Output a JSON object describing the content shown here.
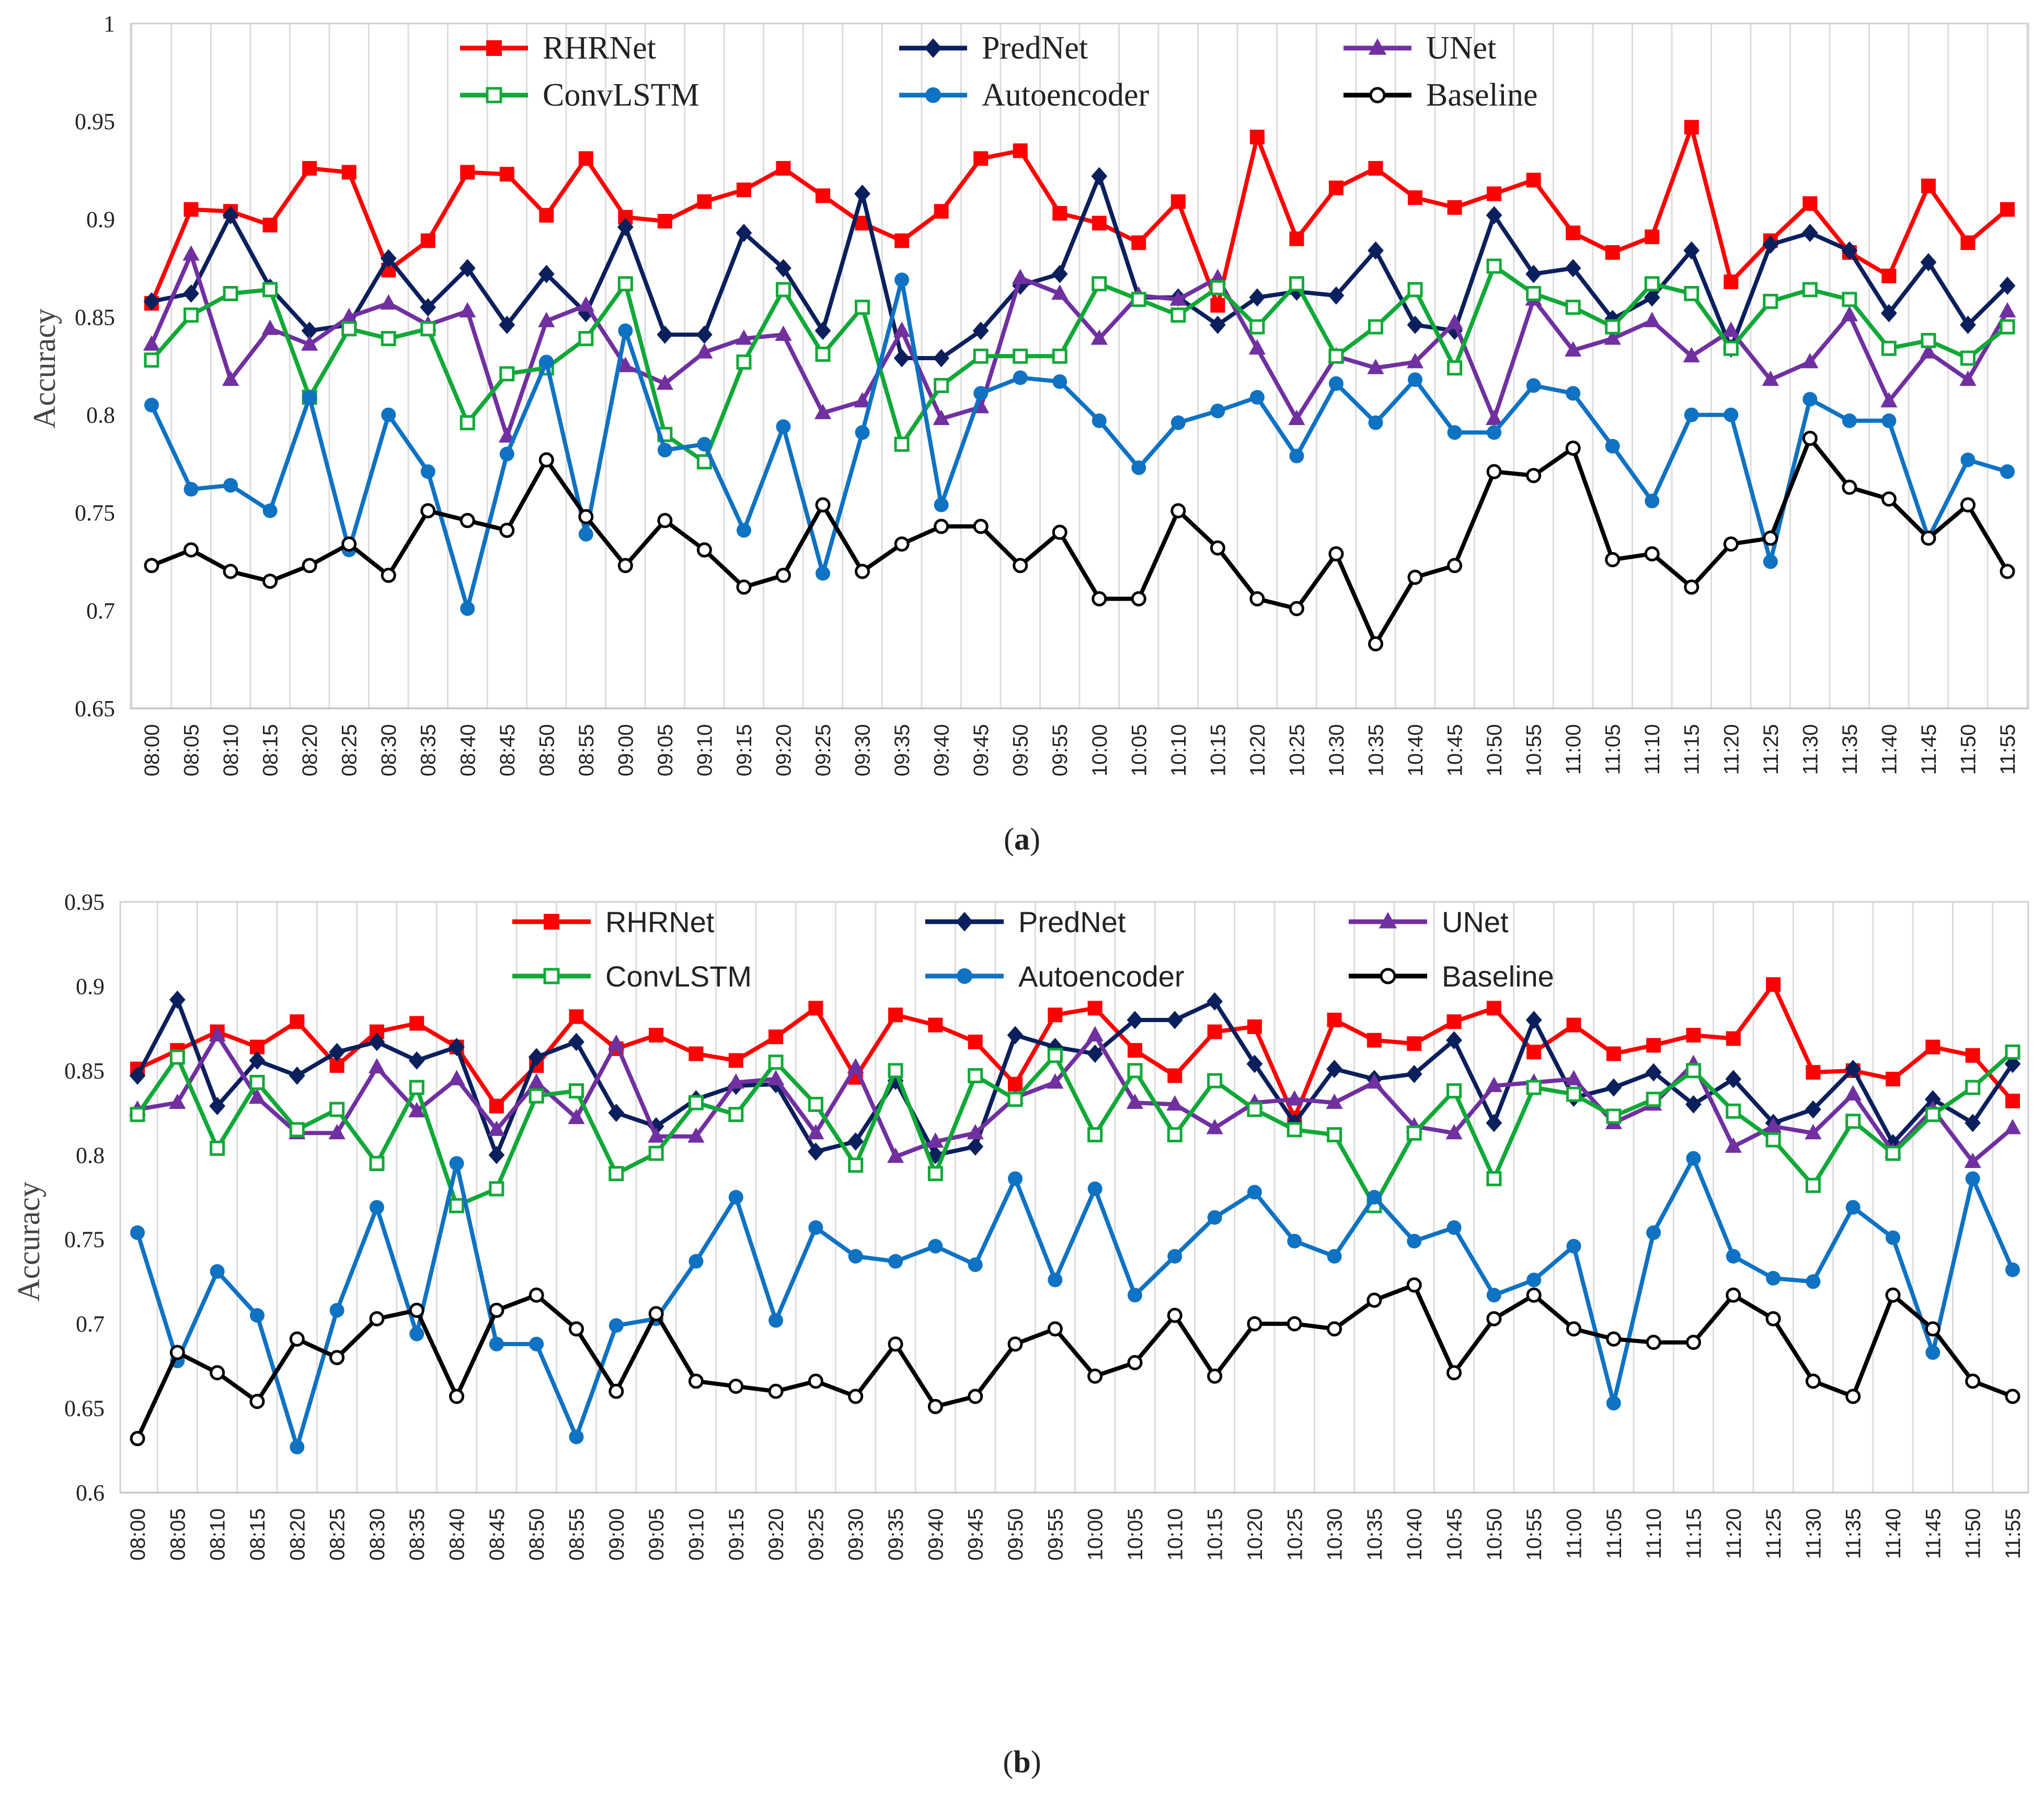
{
  "times": [
    "08:00",
    "08:05",
    "08:10",
    "08:15",
    "08:20",
    "08:25",
    "08:30",
    "08:35",
    "08:40",
    "08:45",
    "08:50",
    "08:55",
    "09:00",
    "09:05",
    "09:10",
    "09:15",
    "09:20",
    "09:25",
    "09:30",
    "09:35",
    "09:40",
    "09:45",
    "09:50",
    "09:55",
    "10:00",
    "10:05",
    "10:10",
    "10:15",
    "10:20",
    "10:25",
    "10:30",
    "10:35",
    "10:40",
    "10:45",
    "10:50",
    "10:55",
    "11:00",
    "11:05",
    "11:10",
    "11:15",
    "11:20",
    "11:25",
    "11:30",
    "11:35",
    "11:40",
    "11:45",
    "11:50",
    "11:55"
  ],
  "chart_data": [
    {
      "id": "a",
      "type": "line",
      "caption_letter": "a",
      "ylabel": "Accuracy",
      "xlabel": "",
      "ylim": [
        0.65,
        1
      ],
      "yticks": [
        0.65,
        0.7,
        0.75,
        0.8,
        0.85,
        0.9,
        0.95,
        1
      ],
      "ytick_labels": [
        "0.65",
        "0.7",
        "0.75",
        "0.8",
        "0.85",
        "0.9",
        "0.95",
        "1"
      ],
      "grid": "vertical",
      "legend": "top",
      "series": [
        {
          "name": "RHRNet",
          "color": "#ff0000",
          "marker": "square-filled",
          "values": [
            0.857,
            0.905,
            0.904,
            0.897,
            0.926,
            0.924,
            0.874,
            0.889,
            0.924,
            0.923,
            0.902,
            0.931,
            0.901,
            0.899,
            0.909,
            0.915,
            0.926,
            0.912,
            0.898,
            0.889,
            0.904,
            0.931,
            0.935,
            0.903,
            0.898,
            0.888,
            0.909,
            0.856,
            0.942,
            0.89,
            0.916,
            0.926,
            0.911,
            0.906,
            0.913,
            0.92,
            0.893,
            0.883,
            0.891,
            0.947,
            0.868,
            0.889,
            0.908,
            0.883,
            0.871,
            0.917,
            0.888,
            0.905
          ]
        },
        {
          "name": "PredNet",
          "color": "#0a1f5c",
          "marker": "diamond-filled",
          "values": [
            0.858,
            0.862,
            0.902,
            0.865,
            0.843,
            0.846,
            0.88,
            0.855,
            0.875,
            0.846,
            0.872,
            0.852,
            0.896,
            0.841,
            0.841,
            0.893,
            0.875,
            0.843,
            0.913,
            0.829,
            0.829,
            0.843,
            0.866,
            0.872,
            0.922,
            0.86,
            0.86,
            0.846,
            0.86,
            0.863,
            0.861,
            0.884,
            0.846,
            0.843,
            0.902,
            0.872,
            0.875,
            0.849,
            0.86,
            0.884,
            0.834,
            0.887,
            0.893,
            0.884,
            0.852,
            0.878,
            0.846,
            0.866
          ]
        },
        {
          "name": "UNet",
          "color": "#7030a0",
          "marker": "triangle-filled",
          "values": [
            0.836,
            0.882,
            0.818,
            0.844,
            0.836,
            0.85,
            0.857,
            0.846,
            0.853,
            0.789,
            0.848,
            0.856,
            0.825,
            0.816,
            0.832,
            0.839,
            0.841,
            0.801,
            0.807,
            0.843,
            0.798,
            0.804,
            0.87,
            0.862,
            0.839,
            0.861,
            0.859,
            0.87,
            0.834,
            0.798,
            0.83,
            0.824,
            0.827,
            0.847,
            0.798,
            0.859,
            0.833,
            0.839,
            0.848,
            0.83,
            0.843,
            0.818,
            0.827,
            0.851,
            0.807,
            0.832,
            0.818,
            0.853
          ]
        },
        {
          "name": "ConvLSTM",
          "color": "#11a838",
          "marker": "square-open",
          "values": [
            0.828,
            0.851,
            0.862,
            0.864,
            0.809,
            0.844,
            0.839,
            0.844,
            0.796,
            0.821,
            0.824,
            0.839,
            0.867,
            0.79,
            0.776,
            0.827,
            0.864,
            0.831,
            0.855,
            0.785,
            0.815,
            0.83,
            0.83,
            0.83,
            0.867,
            0.859,
            0.851,
            0.865,
            0.845,
            0.867,
            0.83,
            0.845,
            0.864,
            0.824,
            0.876,
            0.862,
            0.855,
            0.845,
            0.867,
            0.862,
            0.834,
            0.858,
            0.864,
            0.859,
            0.834,
            0.838,
            0.829,
            0.845
          ]
        },
        {
          "name": "Autoencoder",
          "color": "#0f72c2",
          "marker": "circle-filled",
          "values": [
            0.805,
            0.762,
            0.764,
            0.751,
            0.809,
            0.731,
            0.8,
            0.771,
            0.701,
            0.78,
            0.827,
            0.739,
            0.843,
            0.782,
            0.785,
            0.741,
            0.794,
            0.719,
            0.791,
            0.869,
            0.754,
            0.811,
            0.819,
            0.817,
            0.797,
            0.773,
            0.796,
            0.802,
            0.809,
            0.779,
            0.816,
            0.796,
            0.818,
            0.791,
            0.791,
            0.815,
            0.811,
            0.784,
            0.756,
            0.8,
            0.8,
            0.725,
            0.808,
            0.797,
            0.797,
            0.737,
            0.777,
            0.771
          ]
        },
        {
          "name": "Baseline",
          "color": "#000000",
          "marker": "circle-open",
          "values": [
            0.723,
            0.731,
            0.72,
            0.715,
            0.723,
            0.734,
            0.718,
            0.751,
            0.746,
            0.741,
            0.777,
            0.748,
            0.723,
            0.746,
            0.731,
            0.712,
            0.718,
            0.754,
            0.72,
            0.734,
            0.743,
            0.743,
            0.723,
            0.74,
            0.706,
            0.706,
            0.751,
            0.732,
            0.706,
            0.701,
            0.729,
            0.683,
            0.717,
            0.723,
            0.771,
            0.769,
            0.783,
            0.726,
            0.729,
            0.712,
            0.734,
            0.737,
            0.788,
            0.763,
            0.757,
            0.737,
            0.754,
            0.72
          ]
        }
      ]
    },
    {
      "id": "b",
      "type": "line",
      "caption_letter": "b",
      "ylabel": "Accuracy",
      "xlabel": "",
      "ylim": [
        0.6,
        0.95
      ],
      "yticks": [
        0.6,
        0.65,
        0.7,
        0.75,
        0.8,
        0.85,
        0.9,
        0.95
      ],
      "ytick_labels": [
        "0.6",
        "0.65",
        "0.7",
        "0.75",
        "0.8",
        "0.85",
        "0.9",
        "0.95"
      ],
      "grid": "vertical",
      "legend": "top",
      "series": [
        {
          "name": "RHRNet",
          "color": "#ff0000",
          "marker": "square-filled",
          "values": [
            0.851,
            0.862,
            0.873,
            0.864,
            0.879,
            0.853,
            0.873,
            0.878,
            0.864,
            0.829,
            0.853,
            0.882,
            0.863,
            0.871,
            0.86,
            0.856,
            0.87,
            0.887,
            0.846,
            0.883,
            0.877,
            0.867,
            0.842,
            0.883,
            0.887,
            0.862,
            0.847,
            0.873,
            0.876,
            0.822,
            0.88,
            0.868,
            0.866,
            0.879,
            0.887,
            0.861,
            0.877,
            0.86,
            0.865,
            0.871,
            0.869,
            0.901,
            0.849,
            0.85,
            0.845,
            0.864,
            0.859,
            0.832
          ]
        },
        {
          "name": "PredNet",
          "color": "#0a1f5c",
          "marker": "diamond-filled",
          "values": [
            0.847,
            0.892,
            0.829,
            0.856,
            0.847,
            0.861,
            0.867,
            0.856,
            0.864,
            0.8,
            0.858,
            0.867,
            0.825,
            0.817,
            0.833,
            0.841,
            0.842,
            0.802,
            0.808,
            0.844,
            0.8,
            0.805,
            0.871,
            0.864,
            0.86,
            0.88,
            0.88,
            0.891,
            0.854,
            0.819,
            0.851,
            0.845,
            0.848,
            0.868,
            0.819,
            0.88,
            0.834,
            0.84,
            0.849,
            0.83,
            0.845,
            0.819,
            0.827,
            0.851,
            0.807,
            0.833,
            0.819,
            0.854
          ]
        },
        {
          "name": "UNet",
          "color": "#7030a0",
          "marker": "triangle-filled",
          "values": [
            0.827,
            0.831,
            0.871,
            0.834,
            0.813,
            0.813,
            0.852,
            0.826,
            0.845,
            0.815,
            0.843,
            0.822,
            0.866,
            0.811,
            0.811,
            0.843,
            0.845,
            0.813,
            0.852,
            0.799,
            0.808,
            0.813,
            0.834,
            0.843,
            0.871,
            0.831,
            0.83,
            0.816,
            0.831,
            0.833,
            0.831,
            0.843,
            0.817,
            0.813,
            0.841,
            0.843,
            0.845,
            0.819,
            0.83,
            0.854,
            0.805,
            0.817,
            0.813,
            0.836,
            0.802,
            0.827,
            0.796,
            0.816
          ]
        },
        {
          "name": "ConvLSTM",
          "color": "#11a838",
          "marker": "square-open",
          "values": [
            0.824,
            0.858,
            0.804,
            0.843,
            0.815,
            0.827,
            0.795,
            0.84,
            0.77,
            0.78,
            0.835,
            0.838,
            0.789,
            0.801,
            0.831,
            0.824,
            0.855,
            0.83,
            0.794,
            0.85,
            0.789,
            0.847,
            0.833,
            0.859,
            0.812,
            0.85,
            0.812,
            0.844,
            0.827,
            0.815,
            0.812,
            0.77,
            0.813,
            0.838,
            0.786,
            0.84,
            0.836,
            0.823,
            0.833,
            0.85,
            0.826,
            0.809,
            0.782,
            0.82,
            0.801,
            0.824,
            0.84,
            0.861
          ]
        },
        {
          "name": "Autoencoder",
          "color": "#0f72c2",
          "marker": "circle-filled",
          "values": [
            0.754,
            0.678,
            0.731,
            0.705,
            0.627,
            0.708,
            0.769,
            0.694,
            0.795,
            0.688,
            0.688,
            0.633,
            0.699,
            0.703,
            0.737,
            0.775,
            0.702,
            0.757,
            0.74,
            0.737,
            0.746,
            0.735,
            0.786,
            0.726,
            0.78,
            0.717,
            0.74,
            0.763,
            0.778,
            0.749,
            0.74,
            0.775,
            0.749,
            0.757,
            0.717,
            0.726,
            0.746,
            0.653,
            0.754,
            0.798,
            0.74,
            0.727,
            0.725,
            0.769,
            0.751,
            0.683,
            0.786,
            0.732
          ]
        },
        {
          "name": "Baseline",
          "color": "#000000",
          "marker": "circle-open",
          "values": [
            0.632,
            0.683,
            0.671,
            0.654,
            0.691,
            0.68,
            0.703,
            0.708,
            0.657,
            0.708,
            0.717,
            0.697,
            0.66,
            0.706,
            0.666,
            0.663,
            0.66,
            0.666,
            0.657,
            0.688,
            0.651,
            0.657,
            0.688,
            0.697,
            0.669,
            0.677,
            0.705,
            0.669,
            0.7,
            0.7,
            0.697,
            0.714,
            0.723,
            0.671,
            0.703,
            0.717,
            0.697,
            0.691,
            0.689,
            0.689,
            0.717,
            0.703,
            0.666,
            0.657,
            0.717,
            0.697,
            0.666,
            0.657
          ]
        }
      ]
    }
  ]
}
